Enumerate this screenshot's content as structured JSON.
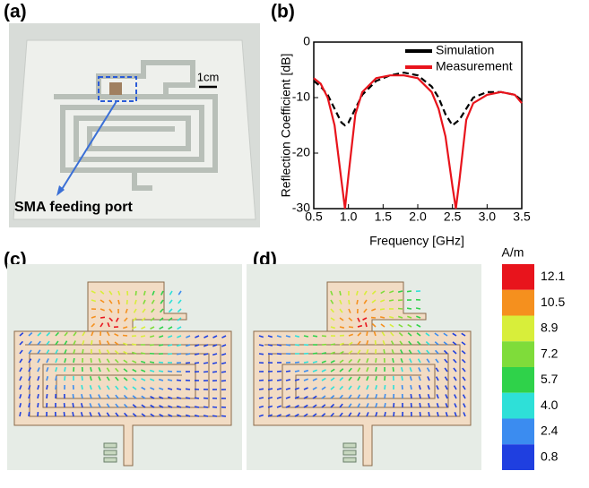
{
  "panels": {
    "a": {
      "label": "(a)",
      "scale": "1cm",
      "annotation": "SMA feeding port"
    },
    "b": {
      "label": "(b)"
    },
    "c": {
      "label": "(c)"
    },
    "d": {
      "label": "(d)"
    }
  },
  "chart_data": {
    "type": "line",
    "x_label": "Frequency [GHz]",
    "y_label": "Reflection Coefficient [dB]",
    "x": [
      0.5,
      0.6,
      0.7,
      0.8,
      0.9,
      0.95,
      1.0,
      1.1,
      1.2,
      1.4,
      1.6,
      1.8,
      2.0,
      2.2,
      2.3,
      2.4,
      2.5,
      2.55,
      2.6,
      2.7,
      2.8,
      3.0,
      3.2,
      3.4,
      3.5
    ],
    "series": [
      {
        "name": "Simulation",
        "color": "#000000",
        "dashed": true,
        "values": [
          -7,
          -8,
          -9.5,
          -12,
          -14.5,
          -15,
          -14.5,
          -12,
          -9.5,
          -7,
          -6,
          -5.5,
          -6,
          -8,
          -10,
          -13,
          -15,
          -14.5,
          -14,
          -12,
          -10,
          -9,
          -9,
          -9.5,
          -10.5
        ]
      },
      {
        "name": "Measurement",
        "color": "#e8141c",
        "dashed": false,
        "values": [
          -6.5,
          -7.5,
          -10,
          -15,
          -25,
          -30,
          -24,
          -13,
          -9,
          -6.5,
          -6,
          -6,
          -6.5,
          -9,
          -12,
          -17,
          -26,
          -30,
          -25,
          -14,
          -11,
          -9.5,
          -9,
          -9.5,
          -11
        ]
      }
    ],
    "xlim": [
      0.5,
      3.5
    ],
    "ylim": [
      -30,
      0
    ],
    "xticks": [
      0.5,
      {
        "value": 1,
        "label": "1.0"
      },
      1.5,
      {
        "value": 2,
        "label": "2.0"
      },
      2.5,
      {
        "value": 3,
        "label": "3.0"
      },
      3.5
    ],
    "yticks": [
      0,
      -10,
      -20,
      -30
    ]
  },
  "colorbar": {
    "unit": "A/m",
    "labels": [
      "12.1",
      "10.5",
      "8.9",
      "7.2",
      "5.7",
      "4.0",
      "2.4",
      "0.8"
    ],
    "colors": [
      "#e8141c",
      "#f5901e",
      "#d8ee3a",
      "#7fdc3a",
      "#2fd24a",
      "#2ee0d8",
      "#3b8cf0",
      "#1f3fe0"
    ]
  }
}
